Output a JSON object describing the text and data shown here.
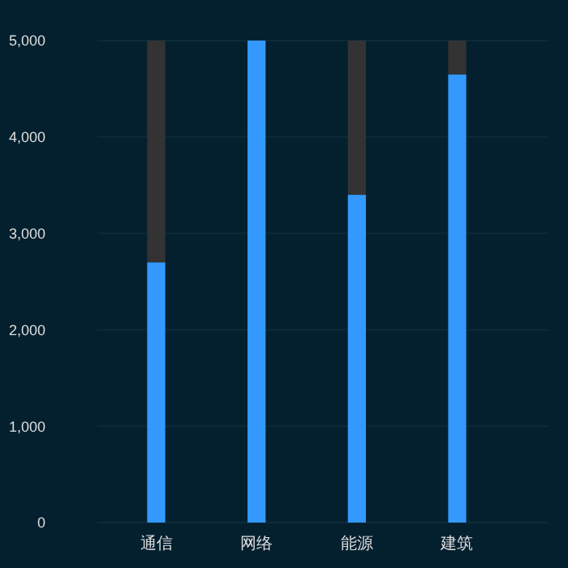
{
  "chart_data": {
    "type": "bar",
    "categories": [
      "通信",
      "网络",
      "能源",
      "建筑"
    ],
    "stacked": true,
    "series": [
      {
        "color": "#3399ff",
        "values": [
          2700,
          5000,
          3400,
          4650
        ]
      },
      {
        "color": "#333333",
        "values": [
          2300,
          0,
          1600,
          350
        ]
      }
    ],
    "ylim": [
      0,
      5000
    ],
    "yticks": [
      0,
      {
        "value": 1000,
        "label": "1,000"
      },
      {
        "value": 2000,
        "label": "2,000"
      },
      {
        "value": 3000,
        "label": "3,000"
      },
      {
        "value": 4000,
        "label": "4,000"
      },
      {
        "value": 5000,
        "label": "5,000"
      }
    ],
    "grid": "y"
  }
}
